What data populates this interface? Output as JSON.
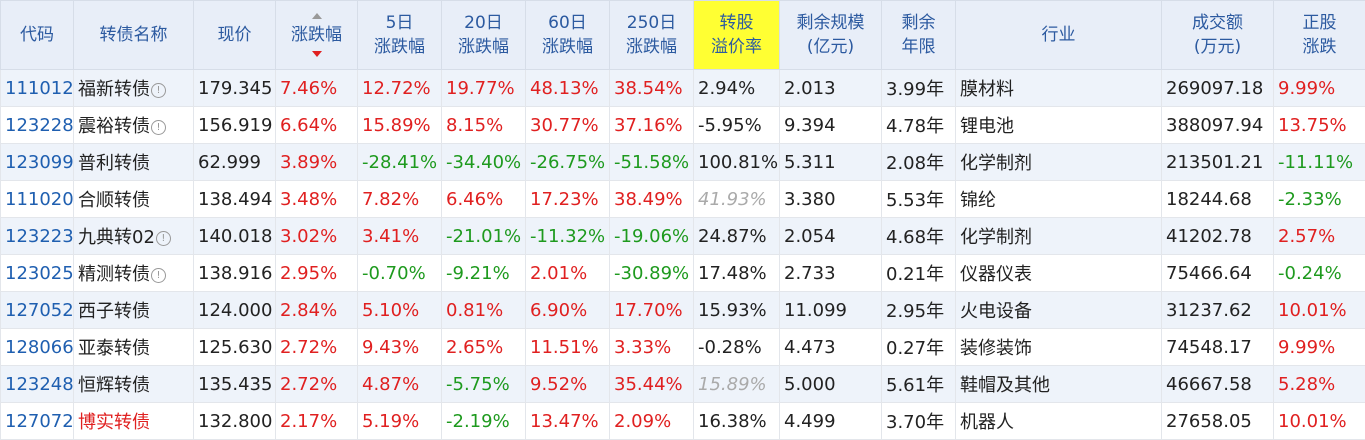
{
  "headers": {
    "code": "代码",
    "name": "转债名称",
    "price": "现价",
    "change": "涨跌幅",
    "d5_1": "5日",
    "d5_2": "涨跌幅",
    "d20_1": "20日",
    "d20_2": "涨跌幅",
    "d60_1": "60日",
    "d60_2": "涨跌幅",
    "d250_1": "250日",
    "d250_2": "涨跌幅",
    "premium_1": "转股",
    "premium_2": "溢价率",
    "scale_1": "剩余规模",
    "scale_2": "(亿元)",
    "years_1": "剩余",
    "years_2": "年限",
    "industry": "行业",
    "volume_1": "成交额",
    "volume_2": "(万元)",
    "stock_1": "正股",
    "stock_2": "涨跌"
  },
  "rows": [
    {
      "code": "111012",
      "name": "福新转债",
      "info": "!",
      "price": "179.345",
      "change": "7.46%",
      "d5": "12.72%",
      "d20": "19.77%",
      "d60": "48.13%",
      "d250": "38.54%",
      "premium": "2.94%",
      "scale": "2.013",
      "years": "3.99年",
      "industry": "膜材料",
      "volume": "269097.18",
      "stock": "9.99%"
    },
    {
      "code": "123228",
      "name": "震裕转债",
      "info": "!",
      "price": "156.919",
      "change": "6.64%",
      "d5": "15.89%",
      "d20": "8.15%",
      "d60": "30.77%",
      "d250": "37.16%",
      "premium": "-5.95%",
      "scale": "9.394",
      "years": "4.78年",
      "industry": "锂电池",
      "volume": "388097.94",
      "stock": "13.75%"
    },
    {
      "code": "123099",
      "name": "普利转债",
      "price": "62.999",
      "change": "3.89%",
      "d5": "-28.41%",
      "d20": "-34.40%",
      "d60": "-26.75%",
      "d250": "-51.58%",
      "premium": "100.81%",
      "scale": "5.311",
      "years": "2.08年",
      "industry": "化学制剂",
      "volume": "213501.21",
      "stock": "-11.11%"
    },
    {
      "code": "111020",
      "name": "合顺转债",
      "price": "138.494",
      "change": "3.48%",
      "d5": "7.82%",
      "d20": "6.46%",
      "d60": "17.23%",
      "d250": "38.49%",
      "premium": "41.93%",
      "scale": "3.380",
      "years": "5.53年",
      "industry": "锦纶",
      "volume": "18244.68",
      "stock": "-2.33%"
    },
    {
      "code": "123223",
      "name": "九典转02",
      "info": "!",
      "price": "140.018",
      "change": "3.02%",
      "d5": "3.41%",
      "d20": "-21.01%",
      "d60": "-11.32%",
      "d250": "-19.06%",
      "premium": "24.87%",
      "scale": "2.054",
      "years": "4.68年",
      "industry": "化学制剂",
      "volume": "41202.78",
      "stock": "2.57%"
    },
    {
      "code": "123025",
      "name": "精测转债",
      "info": "!",
      "price": "138.916",
      "change": "2.95%",
      "d5": "-0.70%",
      "d20": "-9.21%",
      "d60": "2.01%",
      "d250": "-30.89%",
      "premium": "17.48%",
      "scale": "2.733",
      "years": "0.21年",
      "industry": "仪器仪表",
      "volume": "75466.64",
      "stock": "-0.24%"
    },
    {
      "code": "127052",
      "name": "西子转债",
      "price": "124.000",
      "change": "2.84%",
      "d5": "5.10%",
      "d20": "0.81%",
      "d60": "6.90%",
      "d250": "17.70%",
      "premium": "15.93%",
      "scale": "11.099",
      "years": "2.95年",
      "industry": "火电设备",
      "volume": "31237.62",
      "stock": "10.01%"
    },
    {
      "code": "128066",
      "name": "亚泰转债",
      "price": "125.630",
      "change": "2.72%",
      "d5": "9.43%",
      "d20": "2.65%",
      "d60": "11.51%",
      "d250": "3.33%",
      "premium": "-0.28%",
      "scale": "4.473",
      "years": "0.27年",
      "industry": "装修装饰",
      "volume": "74548.17",
      "stock": "9.99%"
    },
    {
      "code": "123248",
      "name": "恒辉转债",
      "price": "135.435",
      "change": "2.72%",
      "d5": "4.87%",
      "d20": "-5.75%",
      "d60": "9.52%",
      "d250": "35.44%",
      "premium": "15.89%",
      "scale": "5.000",
      "years": "5.61年",
      "industry": "鞋帽及其他",
      "volume": "46667.58",
      "stock": "5.28%"
    },
    {
      "code": "127072",
      "name": "博实转债",
      "price": "132.800",
      "change": "2.17%",
      "d5": "5.19%",
      "d20": "-2.19%",
      "d60": "13.47%",
      "d250": "2.09%",
      "premium": "16.38%",
      "scale": "4.499",
      "years": "3.70年",
      "industry": "机器人",
      "volume": "27658.05",
      "stock": "10.01%"
    }
  ],
  "colors": {
    "up": "#e02020",
    "down": "#1e9a1e",
    "code": "#1f5fb0",
    "highlight": "#ffff33",
    "header_bg": "#e8eef8"
  }
}
